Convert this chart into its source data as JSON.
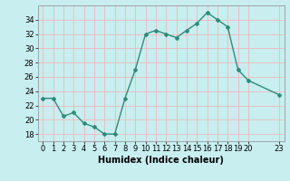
{
  "x": [
    0,
    1,
    2,
    3,
    4,
    5,
    6,
    7,
    8,
    9,
    10,
    11,
    12,
    13,
    14,
    15,
    16,
    17,
    18,
    19,
    20,
    23
  ],
  "y": [
    23,
    23,
    20.5,
    21,
    19.5,
    19,
    18,
    18,
    23,
    27,
    32,
    32.5,
    32,
    31.5,
    32.5,
    33.5,
    35,
    34,
    33,
    27,
    25.5,
    23.5
  ],
  "color": "#2e8b7a",
  "bg_color": "#c8eef0",
  "grid_color": "#f0b8b8",
  "xlabel": "Humidex (Indice chaleur)",
  "yticks": [
    18,
    20,
    22,
    24,
    26,
    28,
    30,
    32,
    34
  ],
  "ylim": [
    17,
    36
  ],
  "xlim": [
    -0.5,
    23.5
  ],
  "marker": "D",
  "markersize": 2.0,
  "linewidth": 1.0,
  "xlabel_fontsize": 7,
  "tick_fontsize": 6
}
